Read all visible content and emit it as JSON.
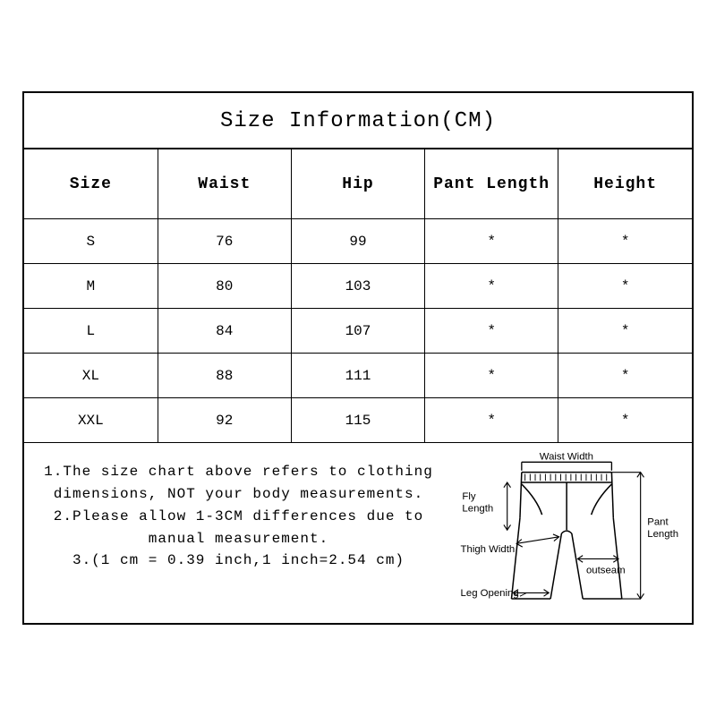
{
  "title": "Size Information(CM)",
  "table": {
    "columns": [
      "Size",
      "Waist",
      "Hip",
      "Pant Length",
      "Height"
    ],
    "rows": [
      [
        "S",
        "76",
        "99",
        "*",
        "*"
      ],
      [
        "M",
        "80",
        "103",
        "*",
        "*"
      ],
      [
        "L",
        "84",
        "107",
        "*",
        "*"
      ],
      [
        "XL",
        "88",
        "111",
        "*",
        "*"
      ],
      [
        "XXL",
        "92",
        "115",
        "*",
        "*"
      ]
    ],
    "header_fontsize": 18,
    "cell_fontsize": 16,
    "border_color": "#000000",
    "background_color": "#ffffff"
  },
  "notes": {
    "line1": "1.The size chart above refers to clothing dimensions, NOT your body measurements.",
    "line2": "2.Please allow 1-3CM differences due to manual measurement.",
    "line3": "3.(1 cm = 0.39 inch,1 inch=2.54 cm)"
  },
  "diagram": {
    "labels": {
      "waist_width": "Waist Width",
      "fly_length": "Fly Length",
      "pant_length": "Pant Length",
      "thigh_width": "Thigh Width",
      "outseam": "outseam",
      "leg_opening": "Leg Opening"
    },
    "stroke": "#000000",
    "stroke_width": 1.4,
    "hatch_stroke_width": 1,
    "label_fontsize": 12
  },
  "colors": {
    "text": "#000000",
    "background": "#ffffff",
    "border": "#000000"
  }
}
